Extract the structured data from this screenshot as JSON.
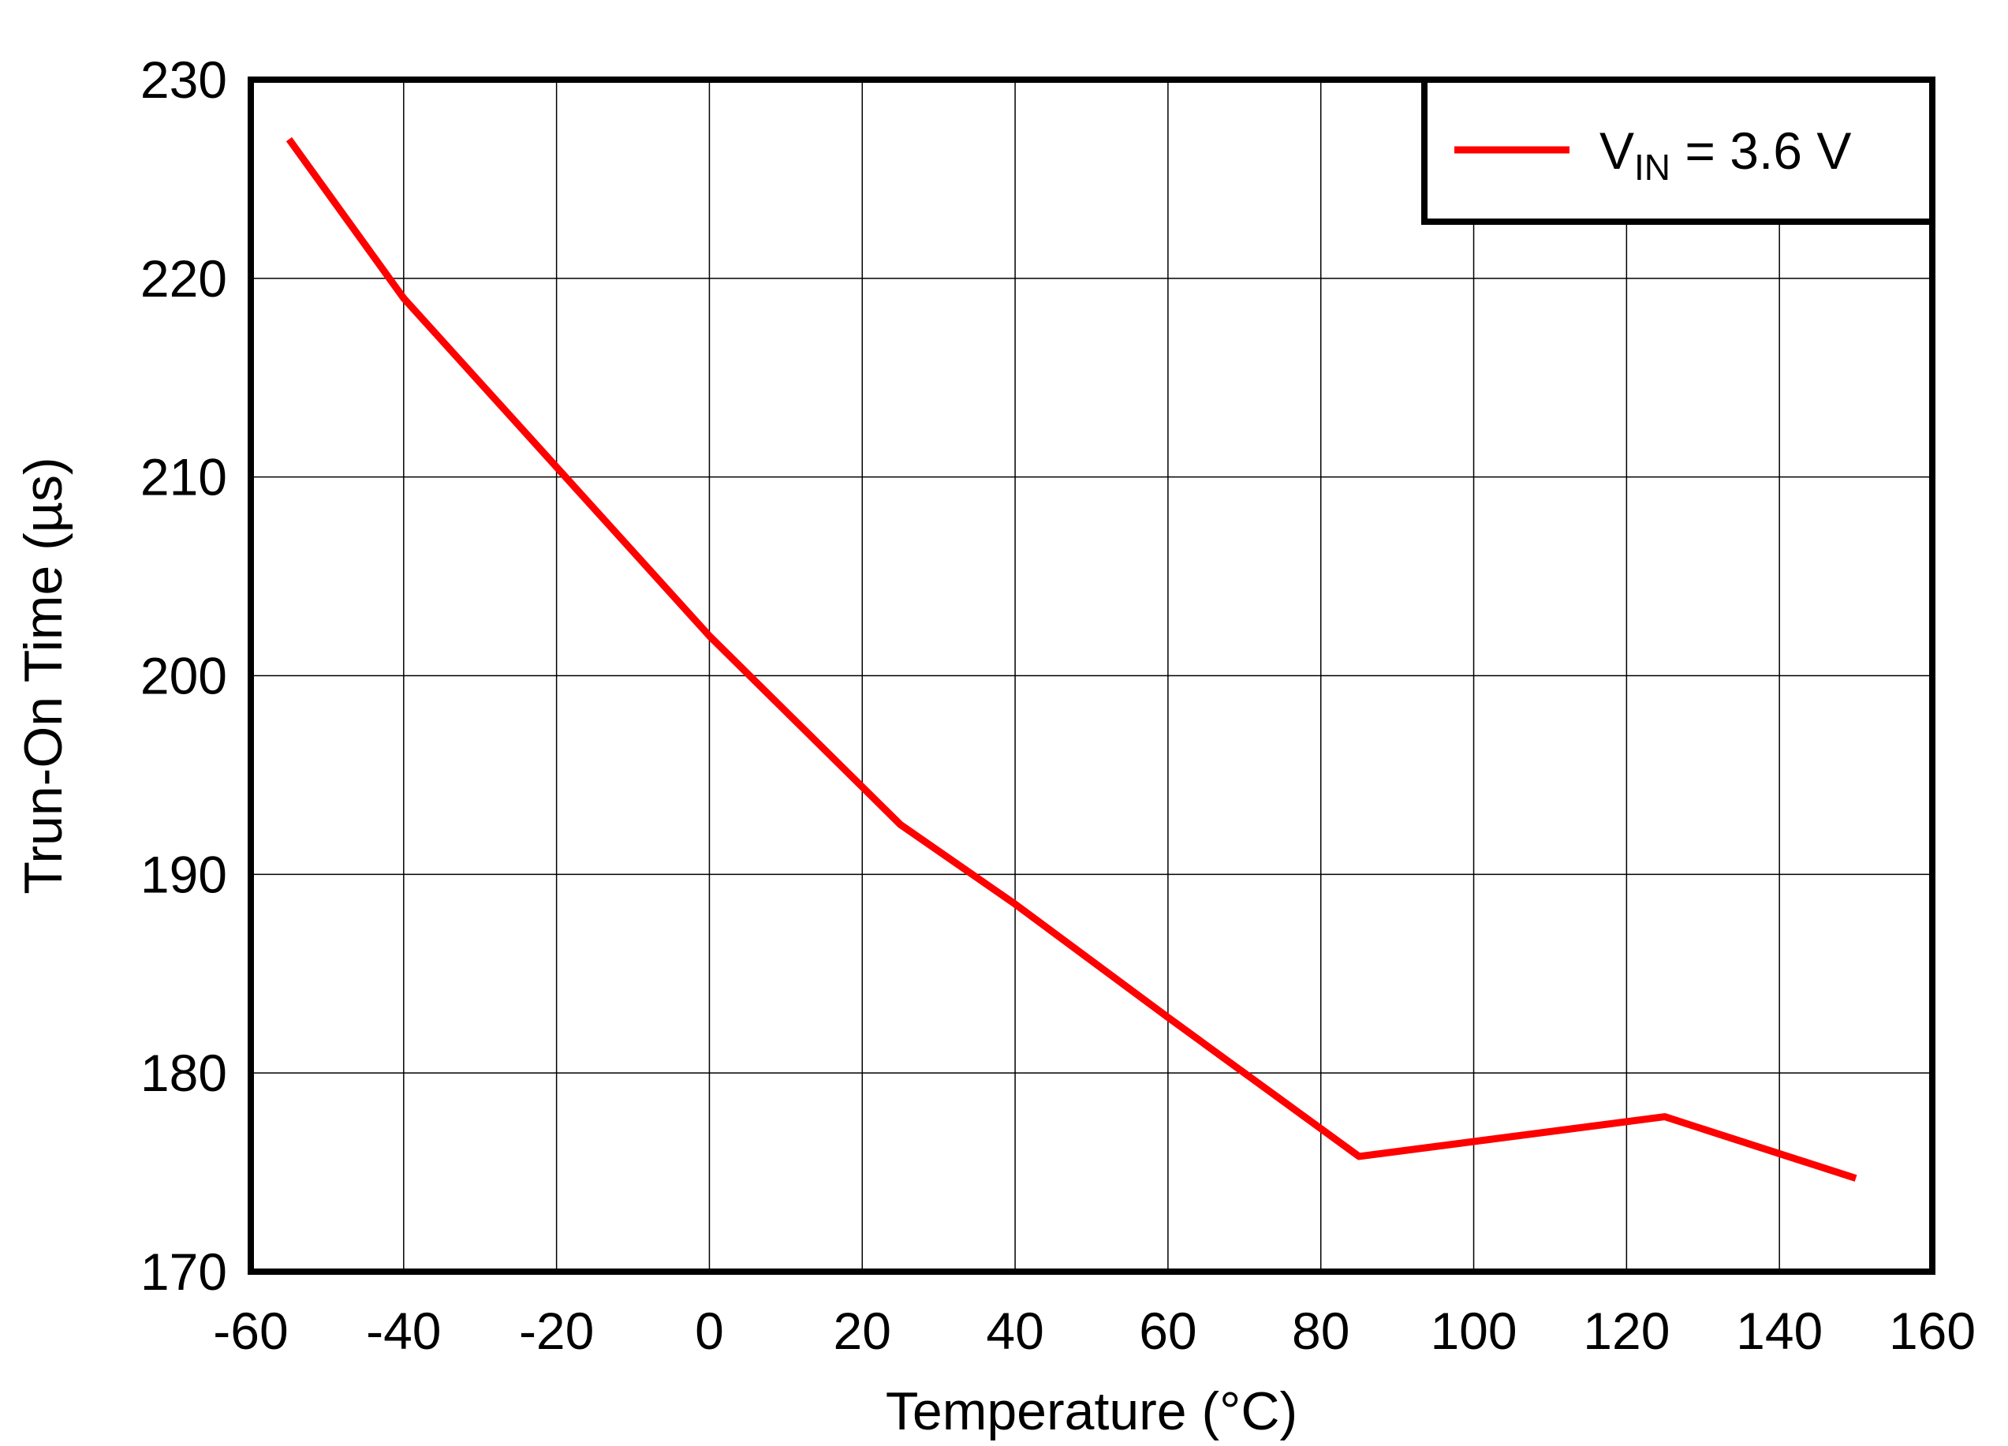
{
  "chart_data": {
    "type": "line",
    "xlabel": "Temperature (°C)",
    "ylabel": "Trun-On Time (µs)",
    "xlim": [
      -60,
      160
    ],
    "ylim": [
      170,
      230
    ],
    "xticks": [
      "-60",
      "-40",
      "-20",
      "0",
      "20",
      "40",
      "60",
      "80",
      "100",
      "120",
      "140",
      "160"
    ],
    "yticks": [
      "170",
      "180",
      "190",
      "200",
      "210",
      "220",
      "230"
    ],
    "grid": true,
    "legend_position": "top-right",
    "series": [
      {
        "name": "V",
        "name_subscript": "IN",
        "name_suffix": " = 3.6 V",
        "color": "#ff0000",
        "x": [
          -55,
          -40,
          -20,
          0,
          25,
          40,
          60,
          85,
          125,
          150
        ],
        "y": [
          227,
          219,
          210.5,
          202,
          192.5,
          188.5,
          182.8,
          175.8,
          177.8,
          174.7
        ]
      }
    ]
  }
}
